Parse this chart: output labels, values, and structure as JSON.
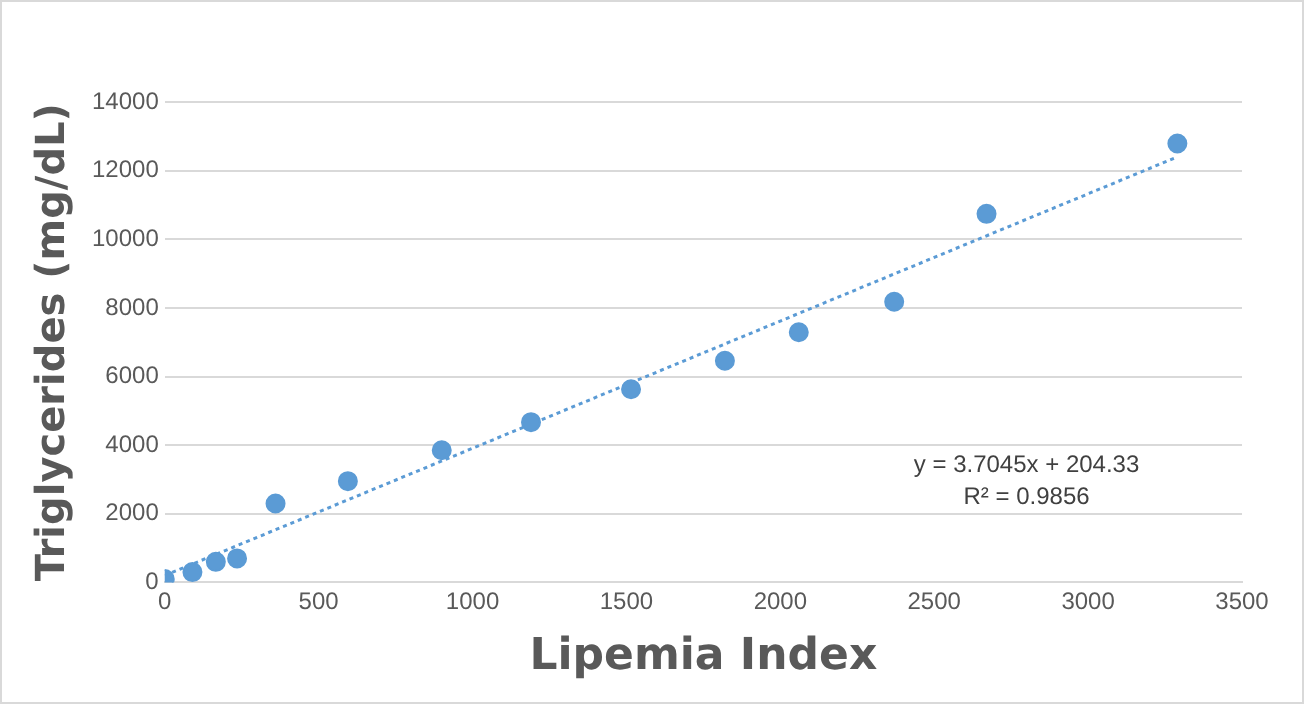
{
  "chart_data": {
    "type": "scatter",
    "xlabel": "Lipemia Index",
    "ylabel": "Triglycerides (mg/dL)",
    "x": [
      0,
      90,
      166,
      235,
      360,
      595,
      900,
      1190,
      1515,
      1820,
      2060,
      2370,
      2670,
      3290
    ],
    "series": [
      {
        "color": "#5b9bd5",
        "marker": "circle",
        "values": [
          100,
          300,
          600,
          700,
          2300,
          2950,
          3850,
          4670,
          5630,
          6460,
          7290,
          8180,
          10740,
          12790
        ]
      },
      {
        "type": "line",
        "color": "#5b9bd5",
        "line_style": "dotted",
        "x": [
          0,
          3290
        ],
        "values": [
          200,
          12400
        ]
      }
    ],
    "xlim": [
      0,
      3500
    ],
    "xticks": [
      0,
      500,
      1000,
      1500,
      2000,
      2500,
      3000,
      3500
    ],
    "ylim": [
      0,
      14000
    ],
    "yticks": [
      0,
      2000,
      4000,
      6000,
      8000,
      10000,
      12000,
      14000
    ],
    "grid": "y",
    "legend": false,
    "annotations": [
      "y = 3.7045x + 204.33",
      "R² = 0.9856"
    ]
  }
}
